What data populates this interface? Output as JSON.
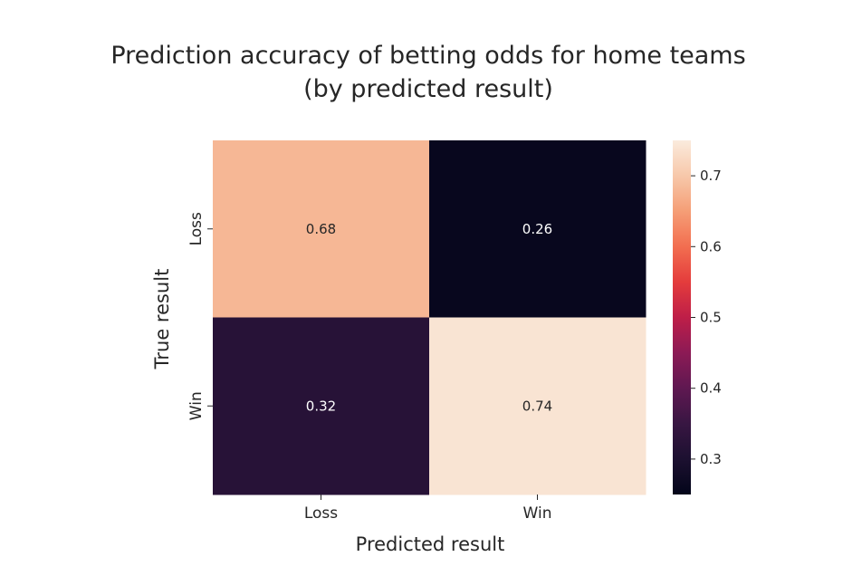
{
  "chart_data": {
    "type": "heatmap",
    "title": "Prediction accuracy of betting odds for home teams",
    "subtitle": "(by predicted result)",
    "xlabel": "Predicted result",
    "ylabel": "True result",
    "x_categories": [
      "Loss",
      "Win"
    ],
    "y_categories": [
      "Loss",
      "Win"
    ],
    "values": [
      [
        0.68,
        0.26
      ],
      [
        0.32,
        0.74
      ]
    ],
    "annotations": [
      [
        "0.68",
        "0.26"
      ],
      [
        "0.32",
        "0.74"
      ]
    ],
    "colorbar": {
      "range": [
        0.25,
        0.75
      ],
      "ticks": [
        0.3,
        0.4,
        0.5,
        0.6,
        0.7
      ],
      "tick_labels": [
        "0.3",
        "0.4",
        "0.5",
        "0.6",
        "0.7"
      ],
      "colormap": "rocket"
    },
    "colors": {
      "text_on_dark": "#ffffff",
      "text_on_light": "#262626"
    }
  }
}
